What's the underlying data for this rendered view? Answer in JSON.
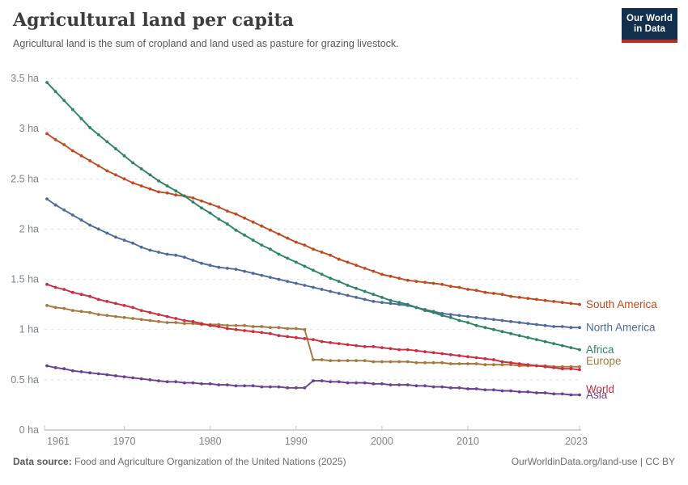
{
  "header": {
    "title": "Agricultural land per capita",
    "subtitle": "Agricultural land is the sum of cropland and land used as pasture for grazing livestock.",
    "logo": {
      "line1": "Our World",
      "line2": "in Data",
      "bg_color": "#12304e",
      "bar_color": "#bd2a25"
    }
  },
  "footer": {
    "source_label": "Data source:",
    "source_text": " Food and Agriculture Organization of the United Nations (2025)",
    "link_text": "OurWorldinData.org/land-use | CC BY"
  },
  "chart_data": {
    "type": "line",
    "title": "Agricultural land per capita",
    "unit": "ha",
    "ylim": [
      0,
      3.5
    ],
    "grid": "horizontal dashed",
    "legend_position": "right-end-labels",
    "markers": true,
    "x_ticks": [
      1961,
      1970,
      1980,
      1990,
      2000,
      2010,
      2023
    ],
    "y_ticks": [
      {
        "value": 0,
        "label": "0 ha"
      },
      {
        "value": 0.5,
        "label": "0.5 ha"
      },
      {
        "value": 1,
        "label": "1 ha"
      },
      {
        "value": 1.5,
        "label": "1.5 ha"
      },
      {
        "value": 2,
        "label": "2 ha"
      },
      {
        "value": 2.5,
        "label": "2.5 ha"
      },
      {
        "value": 3,
        "label": "3 ha"
      },
      {
        "value": 3.5,
        "label": "3.5 ha"
      }
    ],
    "x": [
      1961,
      1962,
      1963,
      1964,
      1965,
      1966,
      1967,
      1968,
      1969,
      1970,
      1971,
      1972,
      1973,
      1974,
      1975,
      1976,
      1977,
      1978,
      1979,
      1980,
      1981,
      1982,
      1983,
      1984,
      1985,
      1986,
      1987,
      1988,
      1989,
      1990,
      1991,
      1992,
      1993,
      1994,
      1995,
      1996,
      1997,
      1998,
      1999,
      2000,
      2001,
      2002,
      2003,
      2004,
      2005,
      2006,
      2007,
      2008,
      2009,
      2010,
      2011,
      2012,
      2013,
      2014,
      2015,
      2016,
      2017,
      2018,
      2019,
      2020,
      2021,
      2022,
      2023
    ],
    "series": [
      {
        "name": "South America",
        "color": "#bf4a1f",
        "values": [
          2.95,
          2.89,
          2.84,
          2.78,
          2.73,
          2.68,
          2.63,
          2.58,
          2.54,
          2.5,
          2.46,
          2.43,
          2.4,
          2.37,
          2.36,
          2.34,
          2.33,
          2.31,
          2.28,
          2.25,
          2.22,
          2.18,
          2.15,
          2.11,
          2.07,
          2.03,
          1.99,
          1.95,
          1.91,
          1.87,
          1.84,
          1.8,
          1.77,
          1.74,
          1.7,
          1.67,
          1.64,
          1.61,
          1.58,
          1.55,
          1.53,
          1.51,
          1.49,
          1.48,
          1.47,
          1.46,
          1.45,
          1.43,
          1.42,
          1.4,
          1.39,
          1.37,
          1.36,
          1.35,
          1.33,
          1.32,
          1.31,
          1.3,
          1.29,
          1.28,
          1.27,
          1.26,
          1.25
        ]
      },
      {
        "name": "North America",
        "color": "#4c6a9c",
        "values": [
          2.3,
          2.24,
          2.19,
          2.14,
          2.09,
          2.04,
          2.0,
          1.96,
          1.92,
          1.89,
          1.86,
          1.82,
          1.79,
          1.77,
          1.75,
          1.74,
          1.72,
          1.69,
          1.66,
          1.64,
          1.62,
          1.61,
          1.6,
          1.58,
          1.56,
          1.54,
          1.52,
          1.5,
          1.48,
          1.46,
          1.44,
          1.42,
          1.4,
          1.38,
          1.36,
          1.34,
          1.32,
          1.3,
          1.28,
          1.27,
          1.26,
          1.25,
          1.24,
          1.22,
          1.2,
          1.18,
          1.16,
          1.15,
          1.14,
          1.13,
          1.12,
          1.11,
          1.1,
          1.09,
          1.08,
          1.07,
          1.06,
          1.05,
          1.04,
          1.03,
          1.03,
          1.02,
          1.02
        ]
      },
      {
        "name": "Africa",
        "color": "#2c8465",
        "values": [
          3.46,
          3.37,
          3.28,
          3.19,
          3.1,
          3.01,
          2.94,
          2.87,
          2.8,
          2.73,
          2.66,
          2.6,
          2.54,
          2.48,
          2.43,
          2.38,
          2.33,
          2.27,
          2.21,
          2.16,
          2.1,
          2.05,
          1.99,
          1.94,
          1.89,
          1.84,
          1.8,
          1.75,
          1.71,
          1.67,
          1.63,
          1.59,
          1.55,
          1.51,
          1.48,
          1.44,
          1.41,
          1.38,
          1.35,
          1.32,
          1.29,
          1.27,
          1.25,
          1.22,
          1.19,
          1.17,
          1.14,
          1.12,
          1.09,
          1.07,
          1.04,
          1.02,
          1.0,
          0.98,
          0.96,
          0.94,
          0.92,
          0.9,
          0.88,
          0.86,
          0.84,
          0.82,
          0.8
        ]
      },
      {
        "name": "Europe",
        "color": "#a8793e",
        "values": [
          1.24,
          1.22,
          1.21,
          1.19,
          1.18,
          1.17,
          1.15,
          1.14,
          1.13,
          1.12,
          1.11,
          1.1,
          1.09,
          1.08,
          1.07,
          1.07,
          1.06,
          1.06,
          1.05,
          1.05,
          1.05,
          1.04,
          1.04,
          1.04,
          1.03,
          1.03,
          1.02,
          1.02,
          1.01,
          1.01,
          1.0,
          0.7,
          0.7,
          0.69,
          0.69,
          0.69,
          0.69,
          0.69,
          0.68,
          0.68,
          0.68,
          0.68,
          0.68,
          0.67,
          0.67,
          0.67,
          0.67,
          0.66,
          0.66,
          0.66,
          0.66,
          0.65,
          0.65,
          0.65,
          0.65,
          0.64,
          0.64,
          0.64,
          0.64,
          0.63,
          0.63,
          0.63,
          0.63
        ]
      },
      {
        "name": "World",
        "color": "#cb2d3e",
        "values": [
          1.45,
          1.42,
          1.4,
          1.37,
          1.35,
          1.33,
          1.3,
          1.28,
          1.26,
          1.24,
          1.22,
          1.19,
          1.17,
          1.15,
          1.13,
          1.11,
          1.09,
          1.08,
          1.06,
          1.04,
          1.03,
          1.01,
          1.0,
          0.99,
          0.98,
          0.97,
          0.96,
          0.94,
          0.93,
          0.92,
          0.91,
          0.9,
          0.88,
          0.87,
          0.86,
          0.85,
          0.84,
          0.83,
          0.83,
          0.82,
          0.81,
          0.8,
          0.8,
          0.79,
          0.78,
          0.77,
          0.76,
          0.75,
          0.74,
          0.73,
          0.72,
          0.71,
          0.7,
          0.68,
          0.67,
          0.66,
          0.65,
          0.64,
          0.63,
          0.62,
          0.61,
          0.61,
          0.6
        ]
      },
      {
        "name": "Asia",
        "color": "#6d3e91",
        "values": [
          0.64,
          0.62,
          0.61,
          0.59,
          0.58,
          0.57,
          0.56,
          0.55,
          0.54,
          0.53,
          0.52,
          0.51,
          0.5,
          0.49,
          0.48,
          0.48,
          0.47,
          0.47,
          0.46,
          0.46,
          0.45,
          0.45,
          0.44,
          0.44,
          0.44,
          0.43,
          0.43,
          0.43,
          0.42,
          0.42,
          0.42,
          0.49,
          0.49,
          0.48,
          0.48,
          0.47,
          0.47,
          0.47,
          0.46,
          0.46,
          0.45,
          0.45,
          0.45,
          0.44,
          0.44,
          0.43,
          0.43,
          0.42,
          0.42,
          0.41,
          0.41,
          0.4,
          0.4,
          0.39,
          0.39,
          0.38,
          0.38,
          0.37,
          0.37,
          0.36,
          0.36,
          0.35,
          0.35
        ]
      }
    ]
  }
}
